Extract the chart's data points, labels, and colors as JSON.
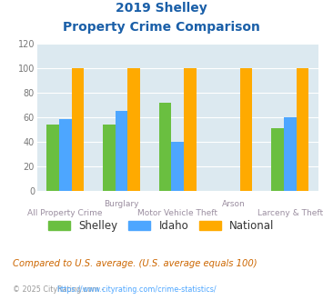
{
  "title_line1": "2019 Shelley",
  "title_line2": "Property Crime Comparison",
  "shelley": [
    54,
    54,
    72,
    0,
    51
  ],
  "idaho": [
    58,
    65,
    40,
    0,
    60
  ],
  "national": [
    100,
    100,
    100,
    100,
    100
  ],
  "shelley_color": "#6abf40",
  "idaho_color": "#4da6ff",
  "national_color": "#ffaa00",
  "bg_color": "#dce9f0",
  "title_color": "#1a5fa8",
  "xlabel_color": "#9b8ea0",
  "legend_label_color": "#333333",
  "footnote_color": "#cc6600",
  "copyright_color": "#999999",
  "copyright_link_color": "#4da6ff",
  "ylim": [
    0,
    120
  ],
  "yticks": [
    0,
    20,
    40,
    60,
    80,
    100,
    120
  ],
  "bar_width": 0.22,
  "title_fontsize": 10,
  "footnote": "Compared to U.S. average. (U.S. average equals 100)",
  "copyright_text": "© 2025 CityRating.com - ",
  "copyright_link": "https://www.cityrating.com/crime-statistics/",
  "legend_entries": [
    "Shelley",
    "Idaho",
    "National"
  ],
  "x_top_labels": [
    [
      1,
      "Burglary"
    ],
    [
      3,
      "Arson"
    ]
  ],
  "x_bottom_labels": [
    [
      0,
      "All Property Crime"
    ],
    [
      2,
      "Motor Vehicle Theft"
    ],
    [
      4,
      "Larceny & Theft"
    ]
  ]
}
